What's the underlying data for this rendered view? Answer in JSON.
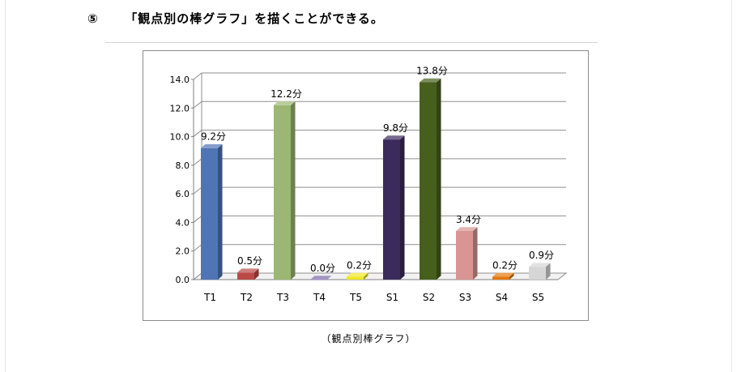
{
  "heading": {
    "number": "⑤",
    "text": "「観点別の棒グラフ」を描くことができる。"
  },
  "caption": "（観点別棒グラフ）",
  "chart_data": {
    "type": "bar",
    "style": "3d-column",
    "categories": [
      "T1",
      "T2",
      "T3",
      "T4",
      "T5",
      "S1",
      "S2",
      "S3",
      "S4",
      "S5"
    ],
    "values": [
      9.2,
      0.5,
      12.2,
      0.0,
      0.2,
      9.8,
      13.8,
      3.4,
      0.2,
      0.9
    ],
    "data_labels": [
      "9.2分",
      "0.5分",
      "12.2分",
      "0.0分",
      "0.2分",
      "9.8分",
      "13.8分",
      "3.4分",
      "0.2分",
      "0.9分"
    ],
    "colors": [
      "#4f75b5",
      "#b94a46",
      "#9bb771",
      "#7c6aa8",
      "#f0e626",
      "#3b2b5c",
      "#465f1c",
      "#d99593",
      "#e3780f",
      "#d6d6d6"
    ],
    "y_ticks": [
      "0.0",
      "2.0",
      "4.0",
      "6.0",
      "8.0",
      "10.0",
      "12.0",
      "14.0"
    ],
    "ylim": [
      0,
      14
    ],
    "grid": true,
    "title": "",
    "xlabel": "",
    "ylabel": ""
  }
}
